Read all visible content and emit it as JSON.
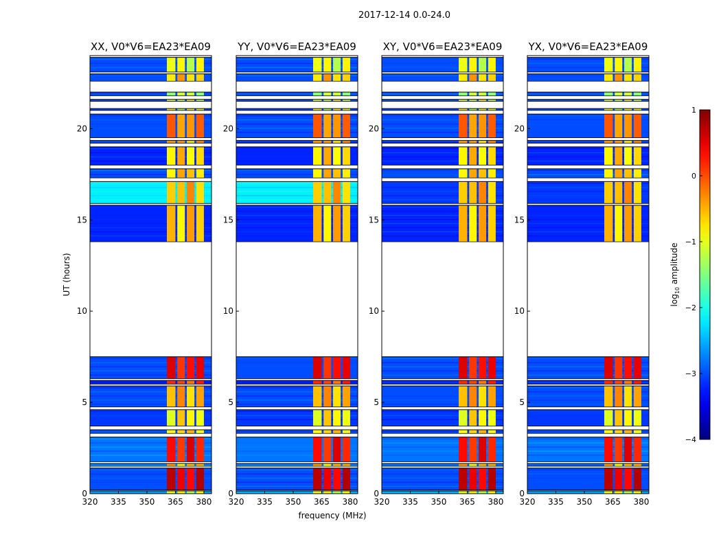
{
  "chart_data": {
    "type": "heatmap",
    "title": "2017-12-14 0.0-24.0",
    "xlabel": "frequency (MHz)",
    "ylabel": "UT (hours)",
    "xlim": [
      320,
      384
    ],
    "ylim": [
      0,
      24
    ],
    "xticks": [
      "320",
      "335",
      "350",
      "365",
      "380"
    ],
    "yticks": [
      "0",
      "5",
      "10",
      "15",
      "20"
    ],
    "colorbar": {
      "label_main": "log",
      "label_sub": "10",
      "label_rest": " amplitude",
      "range": [
        -4,
        1
      ],
      "ticks": [
        "1",
        "0",
        "−1",
        "−2",
        "−3",
        "−4"
      ],
      "colormap": "jet"
    },
    "bands_mhz": [
      [
        360.5,
        365
      ],
      [
        366,
        370
      ],
      [
        371,
        375
      ],
      [
        376,
        380
      ]
    ],
    "segments": [
      {
        "t": [
          0.0,
          0.15
        ],
        "bg": -2.6,
        "band": -1.0
      },
      {
        "t": [
          0.2,
          1.4
        ],
        "bg": -3.0,
        "band": 0.5
      },
      {
        "t": [
          1.5,
          1.65
        ],
        "bg": -2.8,
        "band": -0.6
      },
      {
        "t": [
          1.75,
          3.1
        ],
        "bg": -2.8,
        "band": 0.3
      },
      {
        "t": [
          3.3,
          3.5
        ],
        "bg": -3.0,
        "band": -0.7
      },
      {
        "t": [
          3.7,
          4.6
        ],
        "bg": -3.1,
        "band": -0.8
      },
      {
        "t": [
          4.75,
          5.9
        ],
        "bg": -3.0,
        "band": -0.5
      },
      {
        "t": [
          6.0,
          6.2
        ],
        "bg": -3.2,
        "band": 0.0
      },
      {
        "t": [
          6.3,
          7.5
        ],
        "bg": -3.0,
        "band": 0.3
      },
      {
        "t": [
          13.8,
          15.8
        ],
        "bg": -3.2,
        "band": -0.6
      },
      {
        "t": [
          15.9,
          17.1
        ],
        "bg": -2.2,
        "band": -0.5,
        "bg_cross": -3.1
      },
      {
        "t": [
          17.3,
          17.8
        ],
        "bg": -3.0,
        "band": -0.6
      },
      {
        "t": [
          18.0,
          19.0
        ],
        "bg": -3.2,
        "band": -0.7
      },
      {
        "t": [
          19.2,
          19.35
        ],
        "bg": -3.0,
        "band": -0.5
      },
      {
        "t": [
          19.5,
          20.8
        ],
        "bg": -3.0,
        "band": -0.3
      },
      {
        "t": [
          21.0,
          21.1
        ],
        "bg": -3.0,
        "band": -1.0
      },
      {
        "t": [
          21.5,
          21.6
        ],
        "bg": -3.0,
        "band": -1.0
      },
      {
        "t": [
          21.8,
          22.0
        ],
        "bg": -3.0,
        "band": -1.2
      },
      {
        "t": [
          22.6,
          23.0
        ],
        "bg": -3.0,
        "band": -0.6
      },
      {
        "t": [
          23.1,
          23.9
        ],
        "bg": -3.0,
        "band": -1.0
      }
    ],
    "panels": [
      {
        "title": "XX, V0*V6=EA23*EA09",
        "cross": false
      },
      {
        "title": "YY, V0*V6=EA23*EA09",
        "cross": false
      },
      {
        "title": "XY, V0*V6=EA23*EA09",
        "cross": true
      },
      {
        "title": "YX, V0*V6=EA23*EA09",
        "cross": true
      }
    ]
  }
}
